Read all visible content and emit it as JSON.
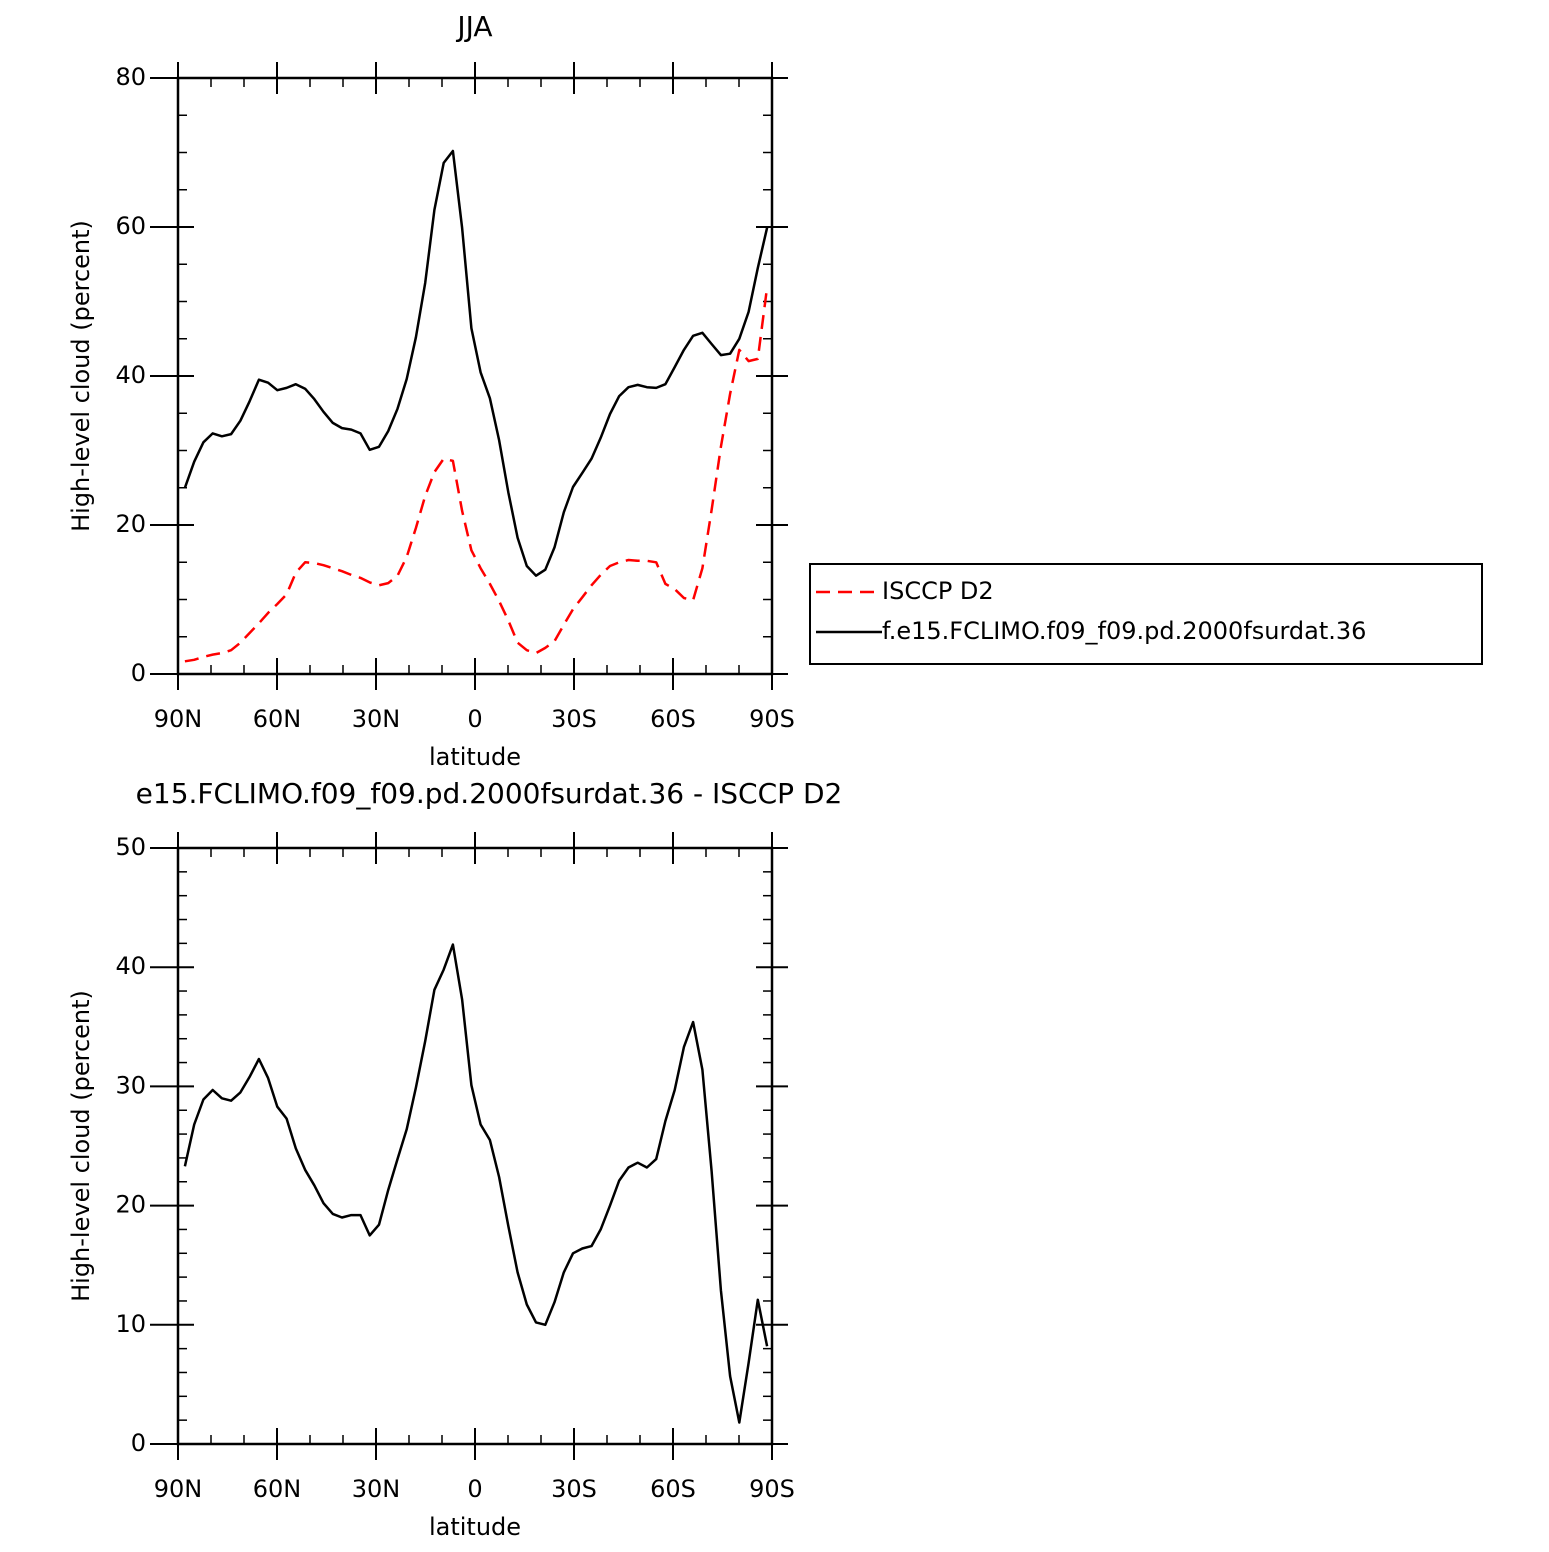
{
  "chart_data": [
    {
      "type": "line",
      "title": "JJA",
      "xlabel": "latitude",
      "ylabel": "High-level cloud (percent)",
      "x": [
        87.9,
        85.1,
        82.3,
        79.5,
        76.7,
        73.9,
        71.1,
        68.3,
        65.5,
        62.7,
        59.9,
        57.1,
        54.3,
        51.5,
        48.7,
        45.9,
        43.1,
        40.3,
        37.5,
        34.7,
        31.9,
        29.1,
        26.3,
        23.5,
        20.7,
        17.9,
        15.1,
        12.3,
        9.5,
        6.7,
        3.9,
        1.1,
        -1.7,
        -4.5,
        -7.3,
        -10.1,
        -12.9,
        -15.7,
        -18.5,
        -21.3,
        -24.1,
        -26.9,
        -29.7,
        -32.5,
        -35.3,
        -38.1,
        -40.9,
        -43.7,
        -46.5,
        -49.3,
        -52.1,
        -54.9,
        -57.7,
        -60.5,
        -63.3,
        -66.1,
        -68.9,
        -71.7,
        -74.5,
        -77.3,
        -80.1,
        -82.9,
        -85.7,
        -88.5
      ],
      "series": [
        {
          "name": "ISCCP D2",
          "color": "#ff0000",
          "linestyle": "dashed",
          "values": [
            1.7,
            1.9,
            2.3,
            2.6,
            2.8,
            3.2,
            4.2,
            5.5,
            6.8,
            8.2,
            9.4,
            10.7,
            13.6,
            15.0,
            14.9,
            14.6,
            14.2,
            13.8,
            13.3,
            12.9,
            12.3,
            11.9,
            12.2,
            13.2,
            15.7,
            19.6,
            23.9,
            27.1,
            28.9,
            28.6,
            21.9,
            16.6,
            14.2,
            12.1,
            9.8,
            7.2,
            4.2,
            3.2,
            2.8,
            3.5,
            4.4,
            6.6,
            8.7,
            10.3,
            11.9,
            13.3,
            14.5,
            15.0,
            15.3,
            15.2,
            15.2,
            15.0,
            12.1,
            11.4,
            10.2,
            9.9,
            14.2,
            22.0,
            30.5,
            37.6,
            43.5,
            42.0,
            42.3,
            51.9
          ]
        },
        {
          "name": "f.e15.FCLIMO.f09_f09.pd.2000fsurdat.36",
          "color": "#000000",
          "linestyle": "solid",
          "values": [
            25.0,
            28.5,
            31.1,
            32.3,
            31.9,
            32.2,
            34.0,
            36.6,
            39.5,
            39.1,
            38.1,
            38.4,
            38.9,
            38.3,
            36.9,
            35.2,
            33.7,
            33.0,
            32.8,
            32.3,
            30.1,
            30.5,
            32.6,
            35.6,
            39.6,
            45.2,
            52.5,
            62.3,
            68.6,
            70.2,
            59.9,
            46.4,
            40.5,
            37.0,
            31.4,
            24.4,
            18.3,
            14.5,
            13.2,
            14.0,
            17.0,
            21.7,
            25.1,
            27.0,
            28.9,
            31.7,
            34.9,
            37.3,
            38.5,
            38.8,
            38.5,
            38.4,
            38.9,
            41.2,
            43.5,
            45.4,
            45.8,
            44.3,
            42.8,
            43.0,
            45.0,
            48.6,
            54.5,
            59.9
          ]
        }
      ],
      "xlim": [
        90,
        -90
      ],
      "xticks": [
        {
          "value": 90,
          "label": "90N"
        },
        {
          "value": 60,
          "label": "60N"
        },
        {
          "value": 30,
          "label": "30N"
        },
        0,
        {
          "value": -30,
          "label": "30S"
        },
        {
          "value": -60,
          "label": "60S"
        },
        {
          "value": -90,
          "label": "90S"
        }
      ],
      "xminorticks": [
        80,
        70,
        50,
        40,
        20,
        10,
        -10,
        -20,
        -40,
        -50,
        -70,
        -80
      ],
      "ylim": [
        0,
        80
      ],
      "yticks": [
        0,
        20,
        40,
        60,
        80
      ],
      "yminorticks": [
        5,
        10,
        15,
        25,
        30,
        35,
        45,
        50,
        55,
        65,
        70,
        75
      ],
      "legend": "right"
    },
    {
      "type": "line",
      "title": "e15.FCLIMO.f09_f09.pd.2000fsurdat.36 - ISCCP D2",
      "xlabel": "latitude",
      "ylabel": "High-level cloud (percent)",
      "x": [
        87.9,
        85.1,
        82.3,
        79.5,
        76.7,
        73.9,
        71.1,
        68.3,
        65.5,
        62.7,
        59.9,
        57.1,
        54.3,
        51.5,
        48.7,
        45.9,
        43.1,
        40.3,
        37.5,
        34.7,
        31.9,
        29.1,
        26.3,
        23.5,
        20.7,
        17.9,
        15.1,
        12.3,
        9.5,
        6.7,
        3.9,
        1.1,
        -1.7,
        -4.5,
        -7.3,
        -10.1,
        -12.9,
        -15.7,
        -18.5,
        -21.3,
        -24.1,
        -26.9,
        -29.7,
        -32.5,
        -35.3,
        -38.1,
        -40.9,
        -43.7,
        -46.5,
        -49.3,
        -52.1,
        -54.9,
        -57.7,
        -60.5,
        -63.3,
        -66.1,
        -68.9,
        -71.7,
        -74.5,
        -77.3,
        -80.1,
        -82.9,
        -85.7,
        -88.5
      ],
      "series": [
        {
          "color": "#000000",
          "linestyle": "solid",
          "values": [
            23.3,
            26.8,
            28.9,
            29.7,
            29.0,
            28.8,
            29.5,
            30.8,
            32.3,
            30.7,
            28.3,
            27.3,
            24.8,
            23.0,
            21.7,
            20.2,
            19.3,
            19.0,
            19.2,
            19.2,
            17.5,
            18.4,
            21.3,
            23.9,
            26.4,
            29.9,
            33.8,
            38.1,
            39.8,
            41.9,
            37.3,
            30.1,
            26.8,
            25.5,
            22.4,
            18.3,
            14.4,
            11.7,
            10.2,
            10.0,
            11.9,
            14.4,
            16.0,
            16.4,
            16.6,
            18.0,
            20.0,
            22.1,
            23.2,
            23.6,
            23.2,
            23.9,
            27.1,
            29.7,
            33.3,
            35.4,
            31.4,
            22.9,
            12.9,
            5.7,
            1.8,
            6.8,
            12.1,
            8.2
          ]
        }
      ],
      "xlim": [
        90,
        -90
      ],
      "xticks": [
        {
          "value": 90,
          "label": "90N"
        },
        {
          "value": 60,
          "label": "60N"
        },
        {
          "value": 30,
          "label": "30N"
        },
        0,
        {
          "value": -30,
          "label": "30S"
        },
        {
          "value": -60,
          "label": "60S"
        },
        {
          "value": -90,
          "label": "90S"
        }
      ],
      "xminorticks": [
        80,
        70,
        50,
        40,
        20,
        10,
        -10,
        -20,
        -40,
        -50,
        -70,
        -80
      ],
      "ylim": [
        0,
        50
      ],
      "yticks": [
        0,
        10,
        20,
        30,
        40,
        50
      ],
      "yminorticks": [
        2,
        4,
        6,
        8,
        12,
        14,
        16,
        18,
        22,
        24,
        26,
        28,
        32,
        34,
        36,
        38,
        42,
        44,
        46,
        48
      ]
    }
  ]
}
